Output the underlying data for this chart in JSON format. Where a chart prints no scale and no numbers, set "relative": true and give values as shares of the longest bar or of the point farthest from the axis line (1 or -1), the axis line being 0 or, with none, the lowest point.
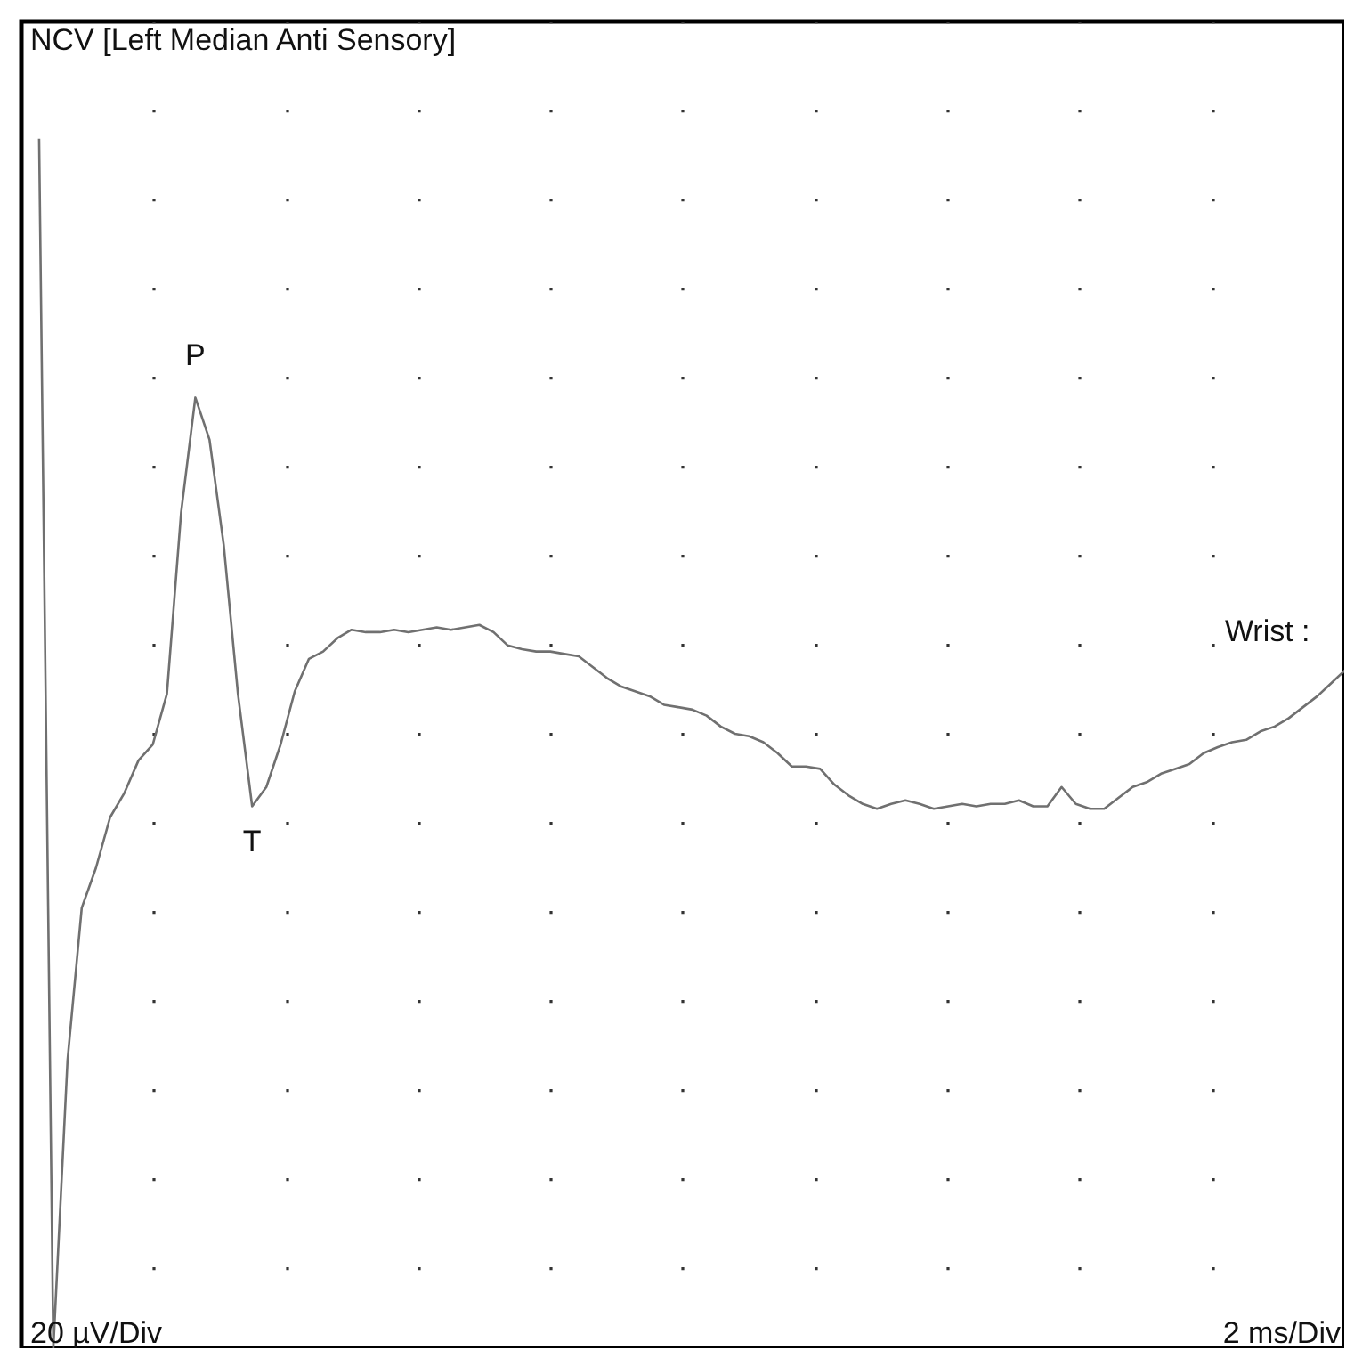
{
  "chart_data": {
    "type": "line",
    "title": "NCV [Left Median Anti Sensory]",
    "relative": true,
    "grid": true,
    "line_style": "solid",
    "categories": [
      null,
      null,
      null,
      null,
      null,
      null,
      null,
      null,
      null,
      null,
      null,
      null,
      null,
      null,
      null,
      null,
      null,
      null,
      null,
      null,
      null,
      null,
      null,
      null,
      null,
      null,
      null,
      null,
      null,
      null,
      null,
      null,
      null,
      null,
      null,
      null,
      null,
      null,
      null,
      null,
      null,
      null,
      null,
      null,
      null,
      null,
      null,
      null,
      null,
      null,
      null,
      null,
      null,
      null,
      null,
      null,
      null,
      null,
      null,
      null,
      null,
      null,
      null,
      null,
      null,
      null,
      null,
      null,
      null,
      null,
      null,
      null,
      null,
      null,
      null,
      null,
      null,
      null,
      null,
      null,
      null,
      null,
      null,
      null,
      null,
      null,
      null,
      null,
      null,
      null,
      null,
      null,
      null
    ],
    "series": [
      {
        "name": "Wrist :",
        "color": "#707070",
        "values": [
          1,
          0,
          0.238,
          0.364,
          0.397,
          0.439,
          0.459,
          0.486,
          0.499,
          0.541,
          0.691,
          0.786,
          0.751,
          0.664,
          0.541,
          0.448,
          0.464,
          0.499,
          0.543,
          0.57,
          0.576,
          0.587,
          0.594,
          0.592,
          0.592,
          0.594,
          0.592,
          0.594,
          0.596,
          0.594,
          0.596,
          0.598,
          0.592,
          0.581,
          0.578,
          0.576,
          0.576,
          0.574,
          0.572,
          0.563,
          0.554,
          0.547,
          0.543,
          0.539,
          0.532,
          0.53,
          0.528,
          0.523,
          0.514,
          0.508,
          0.506,
          0.501,
          0.492,
          0.481,
          0.481,
          0.479,
          0.466,
          0.457,
          0.45,
          0.446,
          0.45,
          0.453,
          0.45,
          0.446,
          0.448,
          0.45,
          0.448,
          0.45,
          0.45,
          0.453,
          0.448,
          0.448,
          0.464,
          0.45,
          0.446,
          0.446,
          0.455,
          0.464,
          0.468,
          0.475,
          0.479,
          0.483,
          0.492,
          0.497,
          0.501,
          0.503,
          0.51,
          0.514,
          0.521,
          0.53,
          0.539,
          0.55,
          0.561
        ]
      }
    ],
    "annotations": [
      {
        "text": "P",
        "y": 0.786
      },
      {
        "text": "T",
        "y": 0.448
      },
      "20 µV/Div",
      "2 ms/Div"
    ]
  }
}
